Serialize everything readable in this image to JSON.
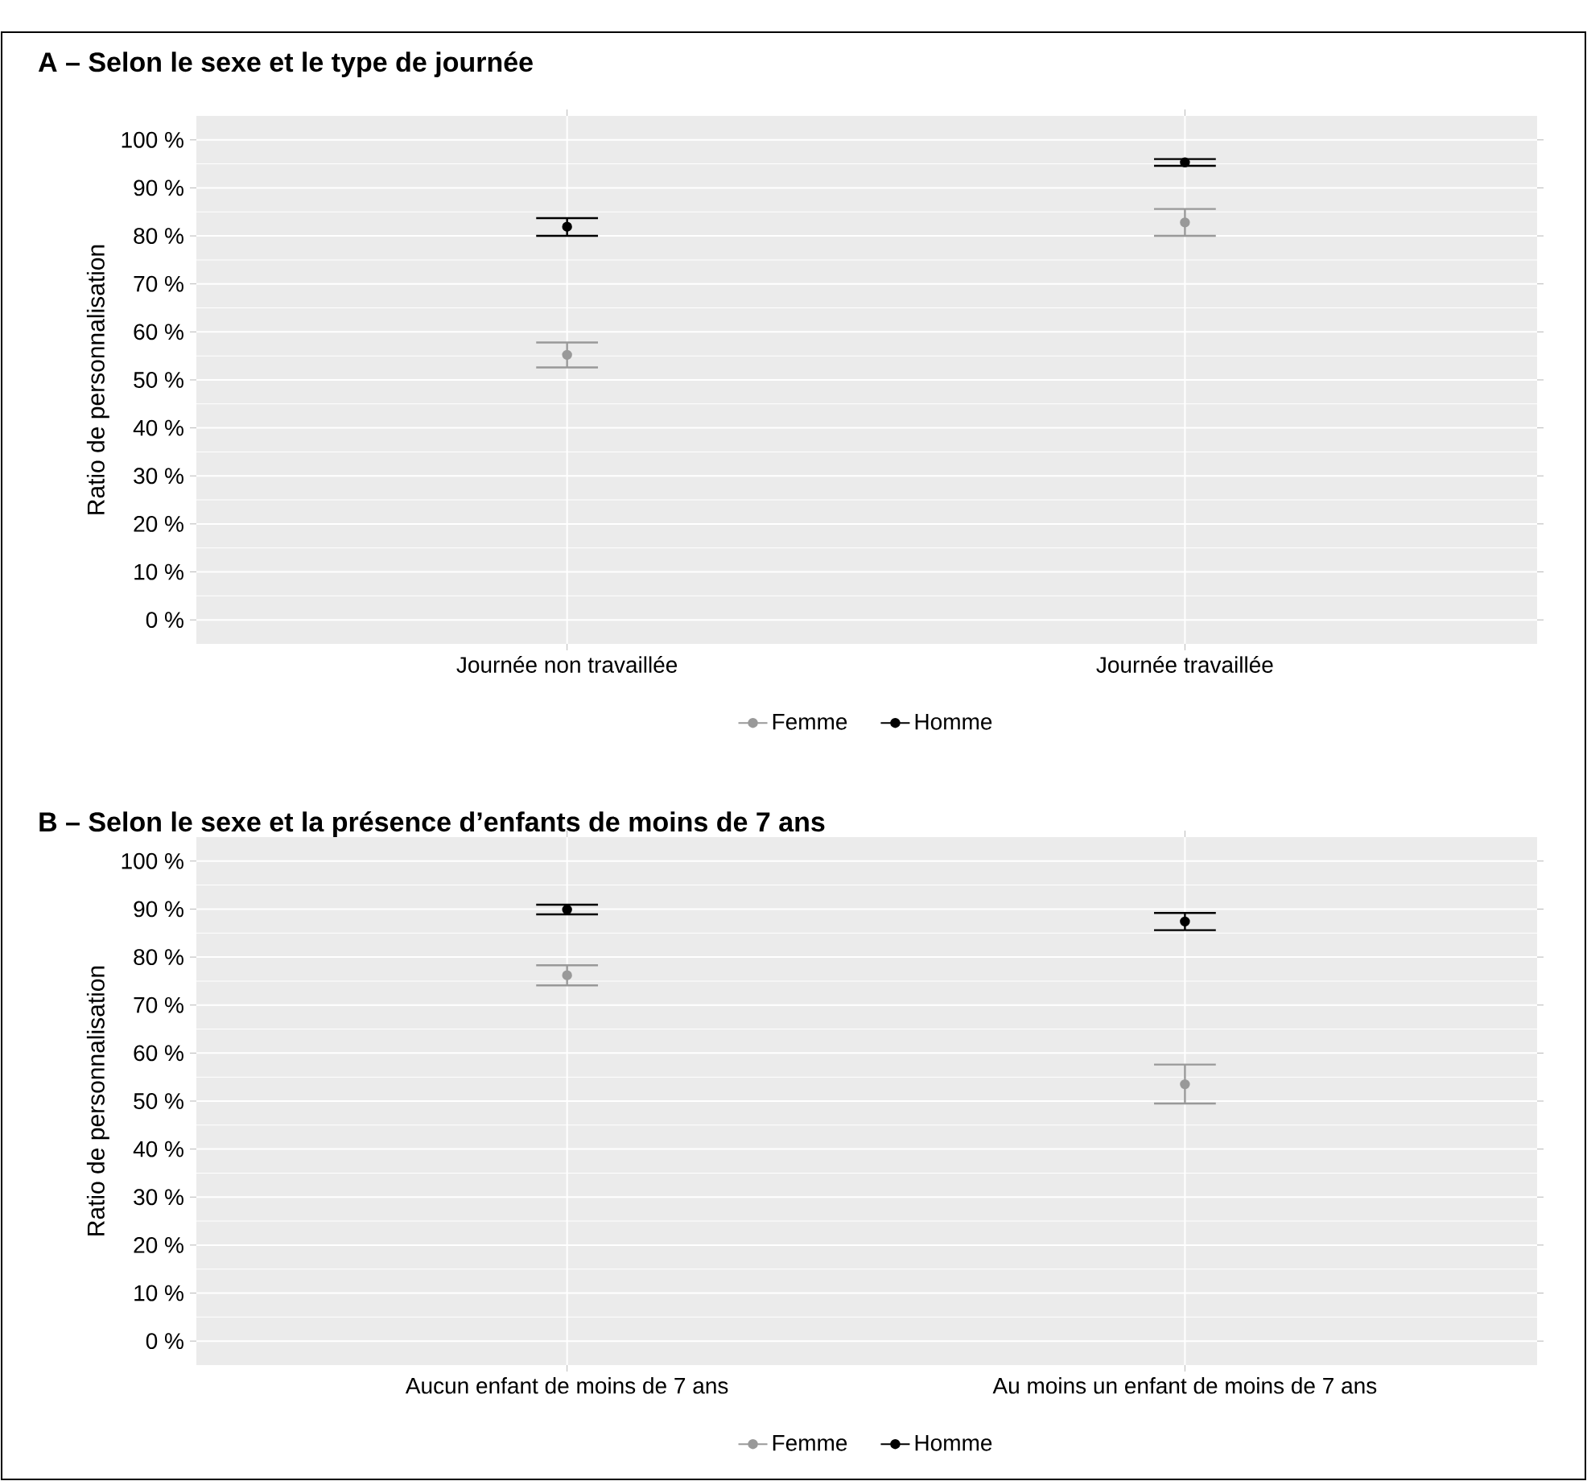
{
  "chart_data": [
    {
      "type": "scatter",
      "title": "A – Selon le sexe et le type de journée",
      "ylabel": "Ratio de personnalisation",
      "categories": [
        "Journée non travaillée",
        "Journée travaillée"
      ],
      "series": [
        {
          "name": "Femme",
          "color": "#999999",
          "values": [
            55.2,
            82.8
          ],
          "errors": [
            [
              52.6,
              57.8
            ],
            [
              80.0,
              85.6
            ]
          ]
        },
        {
          "name": "Homme",
          "color": "#000000",
          "values": [
            81.9,
            95.3
          ],
          "errors": [
            [
              80.0,
              83.7
            ],
            [
              94.6,
              96.0
            ]
          ]
        }
      ],
      "ylim": [
        -5,
        105
      ],
      "yticks": [
        {
          "value": 0,
          "label": "0 %"
        },
        {
          "value": 10,
          "label": "10 %"
        },
        {
          "value": 20,
          "label": "20 %"
        },
        {
          "value": 30,
          "label": "30 %"
        },
        {
          "value": 40,
          "label": "40 %"
        },
        {
          "value": 50,
          "label": "50 %"
        },
        {
          "value": 60,
          "label": "60 %"
        },
        {
          "value": 70,
          "label": "70 %"
        },
        {
          "value": 80,
          "label": "80 %"
        },
        {
          "value": 90,
          "label": "90 %"
        },
        {
          "value": 100,
          "label": "100 %"
        }
      ],
      "grid": true,
      "legend": "bottom",
      "marker": "circle"
    },
    {
      "type": "scatter",
      "title": "B – Selon le sexe et la présence d’enfants de moins de 7 ans",
      "ylabel": "Ratio de personnalisation",
      "categories": [
        "Aucun enfant de moins de 7 ans",
        "Au moins un enfant de moins de 7 ans"
      ],
      "series": [
        {
          "name": "Femme",
          "color": "#999999",
          "values": [
            76.2,
            53.5
          ],
          "errors": [
            [
              74.1,
              78.3
            ],
            [
              49.5,
              57.6
            ]
          ]
        },
        {
          "name": "Homme",
          "color": "#000000",
          "values": [
            89.9,
            87.4
          ],
          "errors": [
            [
              88.9,
              90.9
            ],
            [
              85.6,
              89.2
            ]
          ]
        }
      ],
      "ylim": [
        -5,
        105
      ],
      "yticks": [
        {
          "value": 0,
          "label": "0 %"
        },
        {
          "value": 10,
          "label": "10 %"
        },
        {
          "value": 20,
          "label": "20 %"
        },
        {
          "value": 30,
          "label": "30 %"
        },
        {
          "value": 40,
          "label": "40 %"
        },
        {
          "value": 50,
          "label": "50 %"
        },
        {
          "value": 60,
          "label": "60 %"
        },
        {
          "value": 70,
          "label": "70 %"
        },
        {
          "value": 80,
          "label": "80 %"
        },
        {
          "value": 90,
          "label": "90 %"
        },
        {
          "value": 100,
          "label": "100 %"
        }
      ],
      "grid": true,
      "legend": "bottom",
      "marker": "circle"
    }
  ]
}
